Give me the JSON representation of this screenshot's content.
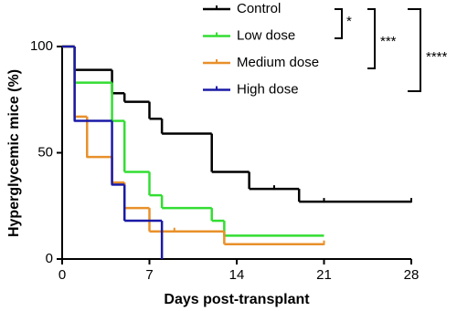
{
  "chart_data": {
    "type": "step",
    "x_label": "Days post-transplant",
    "y_label": "Hyperglycemic mice (%)",
    "xlim": [
      0,
      28
    ],
    "xticks": [
      0,
      7,
      14,
      21,
      28
    ],
    "ylim": [
      0,
      100
    ],
    "yticks": [
      0,
      50,
      100
    ],
    "series": [
      {
        "name": "Control",
        "color": "#000000",
        "x": [
          0,
          1,
          4,
          5,
          7,
          8,
          12,
          15,
          19,
          28
        ],
        "values": [
          100,
          89,
          78,
          74,
          66,
          59,
          41,
          33,
          27,
          27
        ],
        "censored": [
          17,
          21,
          28
        ]
      },
      {
        "name": "Low dose",
        "color": "#33dd33",
        "x": [
          0,
          1,
          4,
          5,
          7,
          8,
          12,
          13,
          21
        ],
        "values": [
          100,
          83,
          65,
          41,
          30,
          24,
          18,
          11,
          11
        ],
        "censored": []
      },
      {
        "name": "Medium dose",
        "color": "#e8902a",
        "x": [
          0,
          1,
          2,
          4,
          5,
          7,
          13,
          21
        ],
        "values": [
          100,
          67,
          48,
          36,
          24,
          13,
          7,
          7
        ],
        "censored": [
          1,
          2,
          9,
          21
        ]
      },
      {
        "name": "High dose",
        "color": "#1a1aa6",
        "x": [
          0,
          1,
          4,
          5,
          8
        ],
        "values": [
          100,
          65,
          35,
          18,
          0
        ],
        "censored": [
          1,
          4
        ]
      }
    ],
    "annotations": [
      "*",
      "***",
      "****"
    ]
  }
}
